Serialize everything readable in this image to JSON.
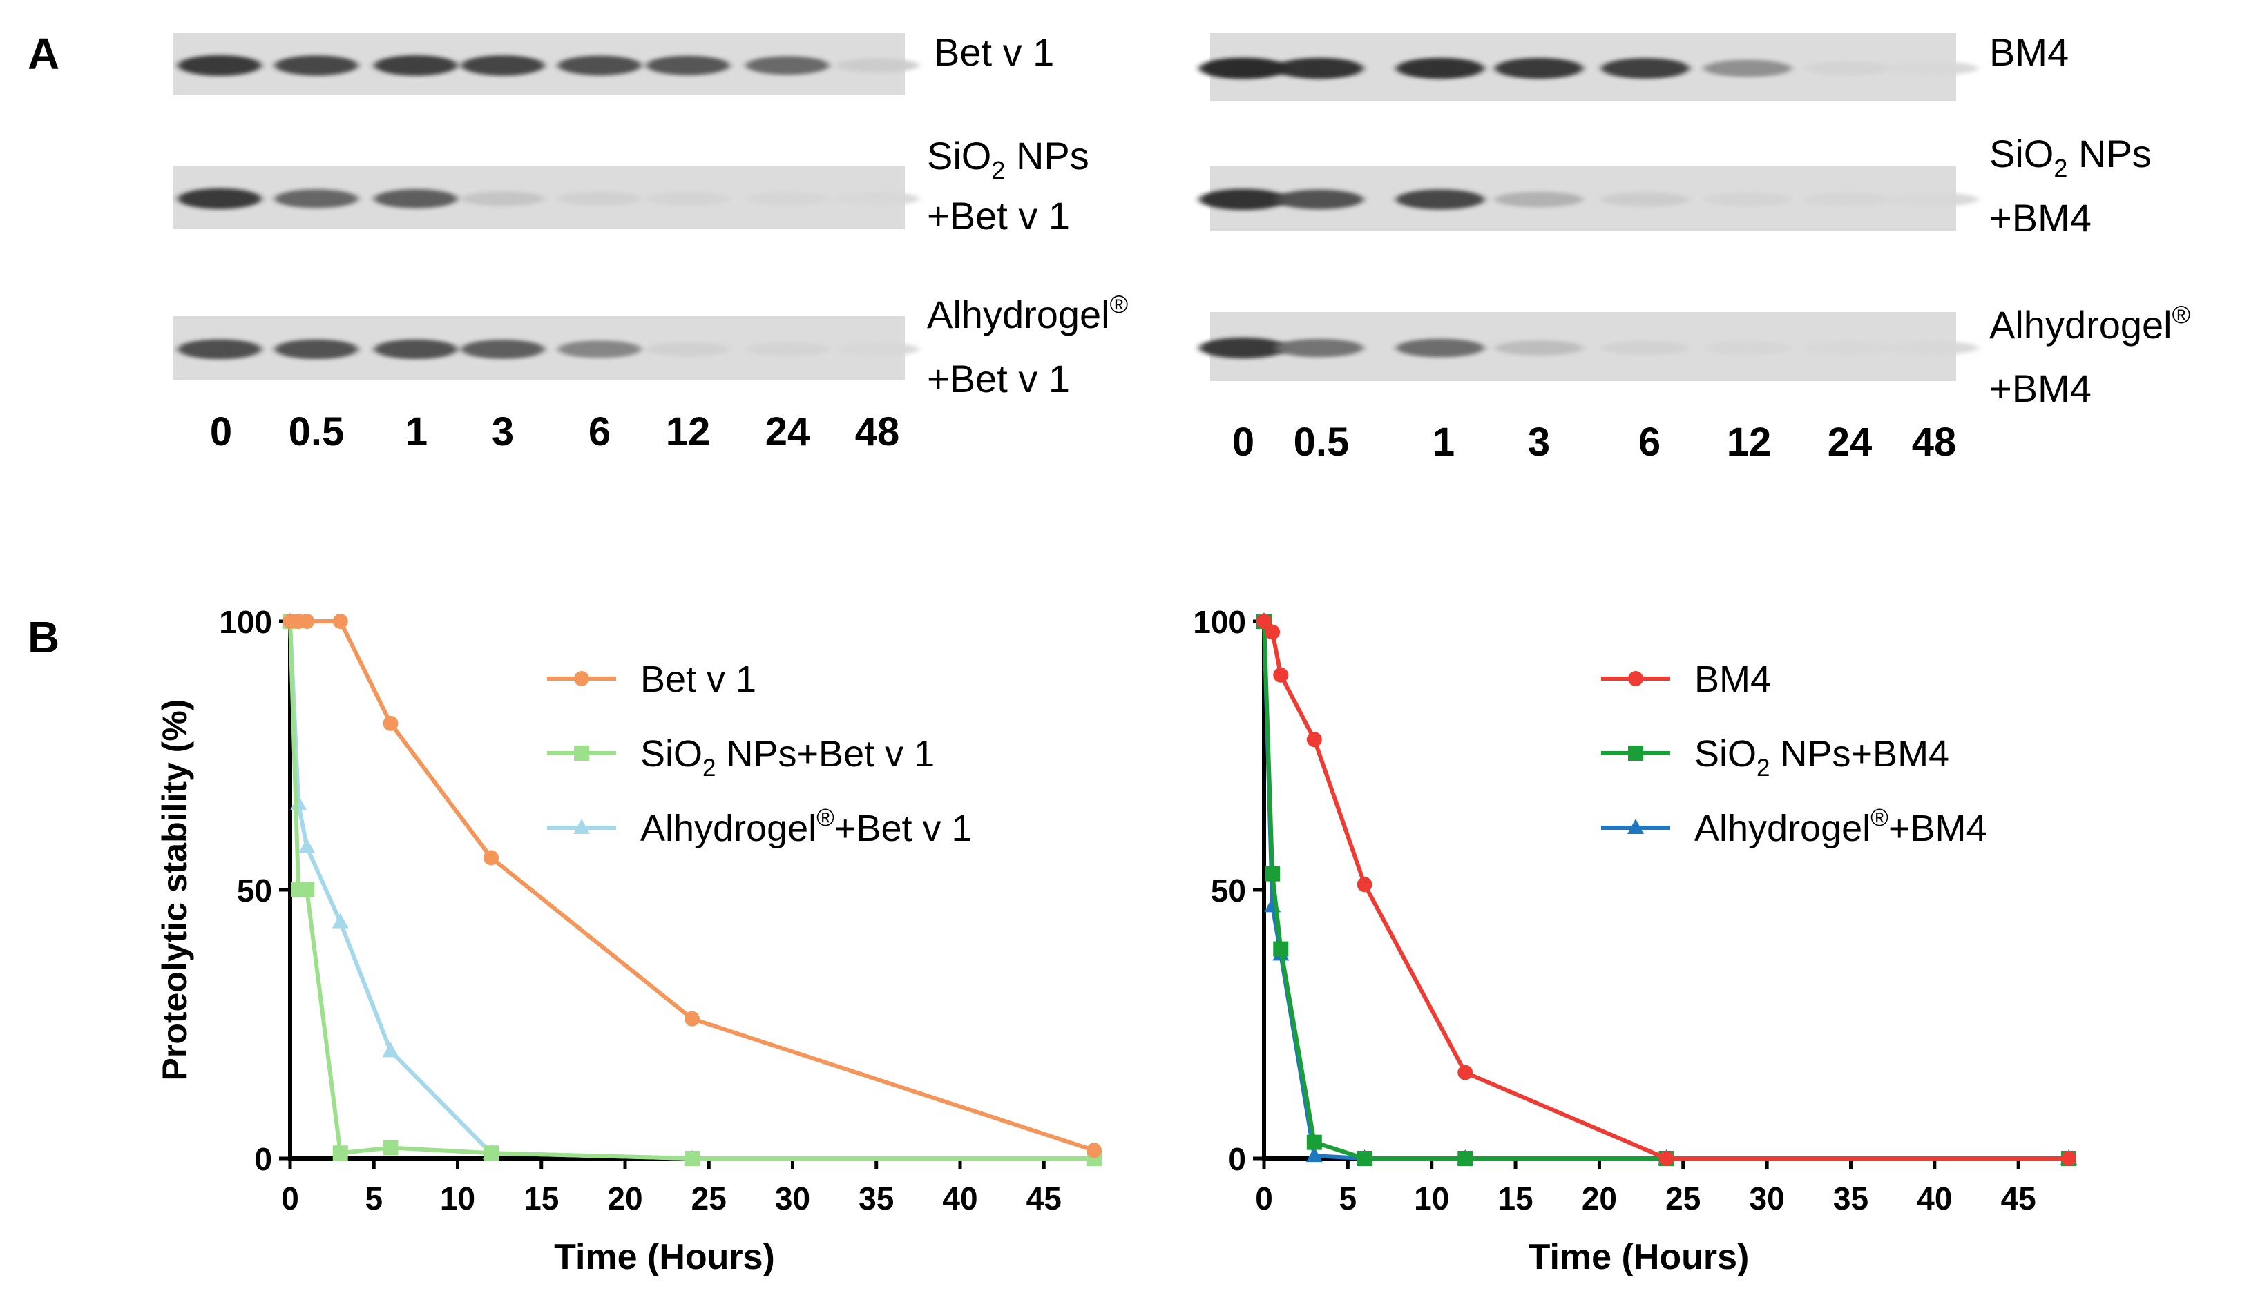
{
  "panel_a": {
    "label": "A",
    "left": {
      "times": [
        "0",
        "0.5",
        "1",
        "3",
        "6",
        "12",
        "24",
        "48"
      ],
      "gels": [
        {
          "label_lines": [
            "Bet v 1"
          ]
        },
        {
          "label_lines": [
            "SiO",
            "2",
            " NPs",
            "+Bet v 1"
          ]
        },
        {
          "label_lines": [
            "Alhydrogel",
            "®",
            "+Bet v 1"
          ]
        }
      ],
      "band_intensity": [
        [
          0.85,
          0.78,
          0.82,
          0.8,
          0.74,
          0.7,
          0.6,
          0.08
        ],
        [
          0.85,
          0.62,
          0.66,
          0.12,
          0.06,
          0.04,
          0.03,
          0.02
        ],
        [
          0.75,
          0.72,
          0.72,
          0.66,
          0.45,
          0.06,
          0.04,
          0.02
        ]
      ]
    },
    "right": {
      "times": [
        "0",
        "0.5",
        "1",
        "3",
        "6",
        "12",
        "24",
        "48"
      ],
      "gels": [
        {
          "label_lines": [
            "BM4"
          ]
        },
        {
          "label_lines": [
            "SiO",
            "2",
            " NPs",
            "+BM4"
          ]
        },
        {
          "label_lines": [
            "Alhydrogel",
            "®",
            "+BM4"
          ]
        }
      ],
      "band_intensity": [
        [
          0.92,
          0.88,
          0.88,
          0.86,
          0.82,
          0.4,
          0.04,
          0.02
        ],
        [
          0.88,
          0.72,
          0.78,
          0.22,
          0.08,
          0.04,
          0.03,
          0.02
        ],
        [
          0.85,
          0.55,
          0.58,
          0.16,
          0.05,
          0.03,
          0.02,
          0.02
        ]
      ]
    }
  },
  "panel_b": {
    "label": "B",
    "chart_data": [
      {
        "type": "line",
        "xlabel": "Time (Hours)",
        "ylabel": "Proteolytic stability (%)",
        "xlim": [
          0,
          48
        ],
        "ylim": [
          0,
          100
        ],
        "xticks": [
          0,
          5,
          10,
          15,
          20,
          25,
          30,
          35,
          40,
          45
        ],
        "yticks": [
          0,
          50,
          100
        ],
        "legend_position": "top-right",
        "series": [
          {
            "name": "Bet v 1",
            "color": "#f4955a",
            "marker": "circle",
            "x": [
              0,
              0.5,
              1,
              3,
              6,
              12,
              24,
              48
            ],
            "y": [
              100,
              100,
              100,
              100,
              81,
              56,
              26,
              1.5
            ]
          },
          {
            "name": "SiO2 NPs+Bet v 1",
            "name_parts": [
              "SiO",
              "2",
              " NPs+Bet v 1"
            ],
            "color": "#9de08c",
            "marker": "square",
            "x": [
              0,
              0.5,
              1,
              3,
              6,
              12,
              24,
              48
            ],
            "y": [
              100,
              50,
              50,
              1,
              2,
              1,
              0,
              0
            ]
          },
          {
            "name": "Alhydrogel®+Bet v 1",
            "name_parts": [
              "Alhydrogel",
              "®",
              "+Bet v 1"
            ],
            "color": "#a6d8ec",
            "marker": "triangle",
            "x": [
              0,
              0.5,
              1,
              3,
              6,
              12,
              24,
              48
            ],
            "y": [
              100,
              66,
              58,
              44,
              20,
              1,
              0,
              0
            ]
          }
        ]
      },
      {
        "type": "line",
        "xlabel": "Time (Hours)",
        "ylabel": "",
        "xlim": [
          0,
          48
        ],
        "ylim": [
          0,
          100
        ],
        "xticks": [
          0,
          5,
          10,
          15,
          20,
          25,
          30,
          35,
          40,
          45
        ],
        "yticks": [
          0,
          50,
          100
        ],
        "legend_position": "top-right",
        "series": [
          {
            "name": "BM4",
            "color": "#ee3b33",
            "marker": "circle",
            "x": [
              0,
              0.5,
              1,
              3,
              6,
              12,
              24,
              48
            ],
            "y": [
              100,
              98,
              90,
              78,
              51,
              16,
              0,
              0
            ]
          },
          {
            "name": "SiO2 NPs+BM4",
            "name_parts": [
              "SiO",
              "2",
              " NPs+BM4"
            ],
            "color": "#1a9e37",
            "marker": "square",
            "x": [
              0,
              0.5,
              1,
              3,
              6,
              12,
              24,
              48
            ],
            "y": [
              100,
              53,
              39,
              3,
              0,
              0,
              0,
              0
            ]
          },
          {
            "name": "Alhydrogel®+BM4",
            "name_parts": [
              "Alhydrogel",
              "®",
              "+BM4"
            ],
            "color": "#1f77c0",
            "marker": "triangle",
            "x": [
              0,
              0.5,
              1,
              3,
              6,
              12,
              24,
              48
            ],
            "y": [
              100,
              47,
              38,
              0.5,
              0,
              0,
              0,
              0
            ]
          }
        ]
      }
    ]
  }
}
